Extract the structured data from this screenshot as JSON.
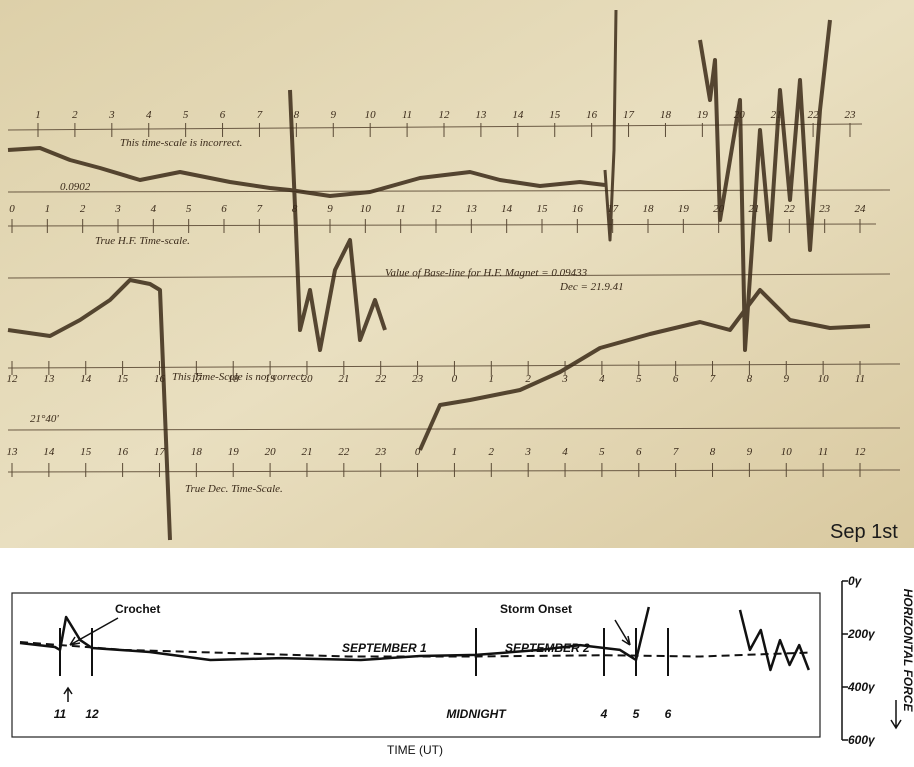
{
  "photo": {
    "caption": "Sep 1st",
    "note_top": "This time-scale is incorrect.",
    "note_hf": "True H.F. Time-scale.",
    "note_base": "Value of Base-line for H.F. Magnet = 0.09433",
    "note_dec": "Dec = 21.9.41",
    "note_not": "This Time-Scale is not correct.",
    "note_true_dec": "True Dec. Time-Scale.",
    "value_hf": "0.0902",
    "value_dec": "21°40'",
    "scales": [
      {
        "labels": [
          "1",
          "2",
          "3",
          "4",
          "5",
          "6",
          "7",
          "8",
          "9",
          "10",
          "11",
          "12",
          "13",
          "14",
          "15",
          "16",
          "17",
          "18",
          "19",
          "20",
          "21",
          "22",
          "23"
        ]
      },
      {
        "labels": [
          "0",
          "1",
          "2",
          "3",
          "4",
          "5",
          "6",
          "7",
          "8",
          "9",
          "10",
          "11",
          "12",
          "13",
          "14",
          "15",
          "16",
          "17",
          "18",
          "19",
          "20",
          "21",
          "22",
          "23",
          "24"
        ]
      },
      {
        "labels": [
          "12",
          "13",
          "14",
          "15",
          "16",
          "17",
          "18",
          "19",
          "20",
          "21",
          "22",
          "23",
          "0",
          "1",
          "2",
          "3",
          "4",
          "5",
          "6",
          "7",
          "8",
          "9",
          "10",
          "11"
        ]
      },
      {
        "labels": [
          "13",
          "14",
          "15",
          "16",
          "17",
          "18",
          "19",
          "20",
          "21",
          "22",
          "23",
          "0",
          "1",
          "2",
          "3",
          "4",
          "5",
          "6",
          "7",
          "8",
          "9",
          "10",
          "11",
          "12"
        ]
      }
    ]
  },
  "chart_data": {
    "type": "line",
    "xlabel": "TIME (UT)",
    "ylabel": "HORIZONTAL FORCE",
    "annotations": [
      "Crochet",
      "Storm Onset",
      "SEPTEMBER 1",
      "SEPTEMBER 2"
    ],
    "xlim": [
      9.5,
      34.75
    ],
    "xticks": [
      {
        "value": 11,
        "label": "11"
      },
      {
        "value": 12,
        "label": "12"
      },
      {
        "value": 24,
        "label": "MIDNIGHT"
      },
      {
        "value": 28,
        "label": "4"
      },
      {
        "value": 29,
        "label": "5"
      },
      {
        "value": 30,
        "label": "6"
      }
    ],
    "ylim": [
      0,
      600
    ],
    "y_inverted": true,
    "yticks": [
      {
        "value": 0,
        "label": "0γ"
      },
      {
        "value": 200,
        "label": "200γ"
      },
      {
        "value": 400,
        "label": "400γ"
      },
      {
        "value": 600,
        "label": "600γ"
      }
    ],
    "series": [
      {
        "color": "#111111",
        "style": "solid",
        "x": [
          9.75,
          10.84,
          11,
          11.19,
          11.63,
          12,
          13.8,
          15.7,
          17.9,
          20.4,
          22.25,
          24,
          26,
          27.25,
          28.5,
          29,
          29.4,
          31,
          32.25,
          32.56,
          32.9,
          33.2,
          33.5,
          33.8,
          34.1,
          34.4
        ],
        "values": [
          234,
          249,
          260,
          136,
          223,
          253,
          268,
          298,
          291,
          298,
          283,
          279,
          260,
          242,
          260,
          298,
          98,
          null,
          109,
          260,
          185,
          336,
          223,
          317,
          242,
          336
        ]
      },
      {
        "color": "#111111",
        "style": "dashed",
        "x": [
          9.75,
          13,
          20,
          24,
          28,
          31,
          34.5
        ],
        "values": [
          230,
          260,
          285,
          285,
          280,
          285,
          270
        ]
      }
    ]
  }
}
